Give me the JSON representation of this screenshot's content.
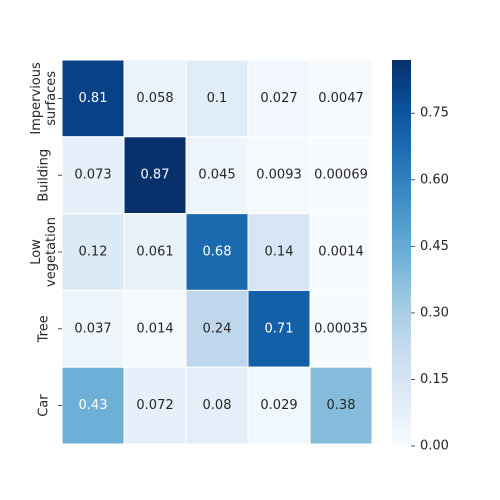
{
  "chart_data": {
    "type": "heatmap",
    "rows": [
      {
        "label_lines": [
          "Impervious",
          "surfaces"
        ],
        "values": [
          "0.81",
          "0.058",
          "0.1",
          "0.027",
          "0.0047"
        ]
      },
      {
        "label_lines": [
          "Building"
        ],
        "values": [
          "0.073",
          "0.87",
          "0.045",
          "0.0093",
          "0.00069"
        ]
      },
      {
        "label_lines": [
          "Low",
          "vegetation"
        ],
        "values": [
          "0.12",
          "0.061",
          "0.68",
          "0.14",
          "0.0014"
        ]
      },
      {
        "label_lines": [
          "Tree"
        ],
        "values": [
          "0.037",
          "0.014",
          "0.24",
          "0.71",
          "0.00035"
        ]
      },
      {
        "label_lines": [
          "Car"
        ],
        "values": [
          "0.43",
          "0.072",
          "0.08",
          "0.029",
          "0.38"
        ]
      }
    ],
    "colorbar": {
      "min": 0,
      "max": 0.87,
      "ticks": [
        "0.00",
        "0.15",
        "0.30",
        "0.45",
        "0.60",
        "0.75"
      ]
    },
    "colormap": "Blues",
    "grid": false
  }
}
